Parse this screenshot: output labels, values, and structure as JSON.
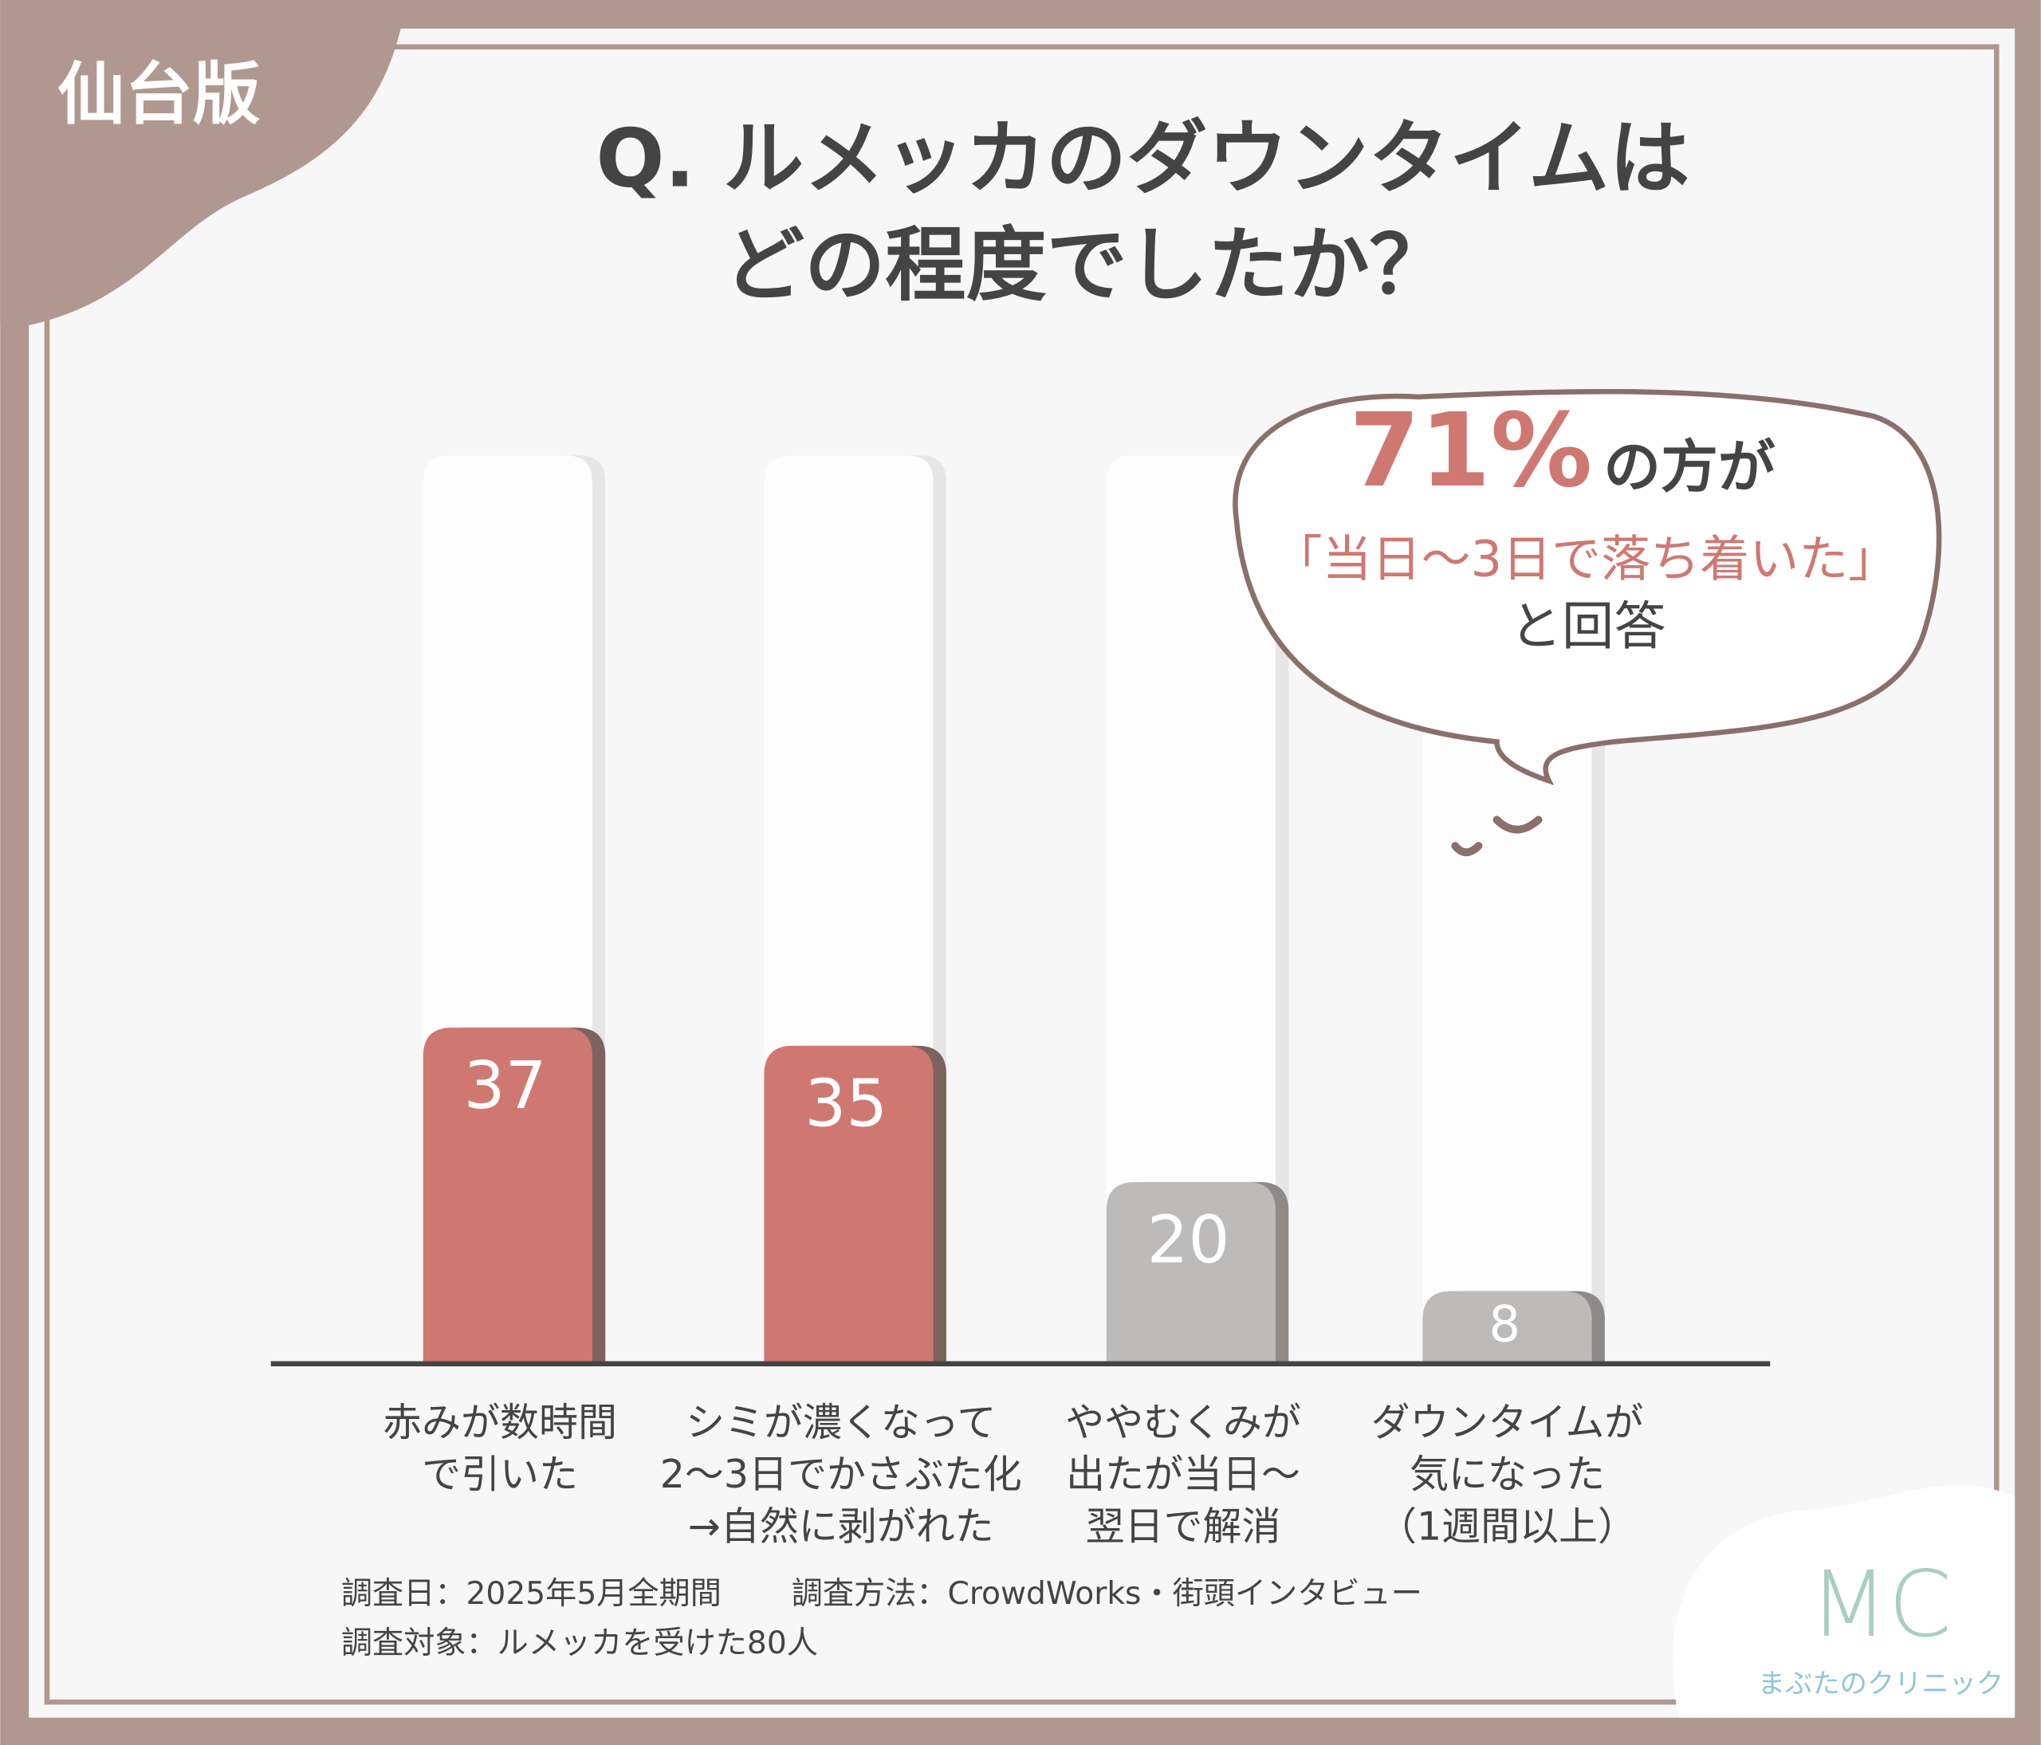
{
  "badge": "仙台版",
  "chart_data": {
    "type": "bar",
    "title": [
      "Q. ルメッカのダウンタイムは",
      "どの程度でしたか？"
    ],
    "categories": [
      [
        "赤みが数時間",
        "で引いた"
      ],
      [
        "シミが濃くなって",
        "2〜3日でかさぶた化",
        "→自然に剥がれた"
      ],
      [
        "ややむくみが",
        "出たが当日〜",
        "翌日で解消"
      ],
      [
        "ダウンタイムが",
        "気になった",
        "（1週間以上）"
      ]
    ],
    "values": [
      37,
      35,
      20,
      8
    ],
    "colors": [
      "#cf7872",
      "#cf7872",
      "#bdbbba",
      "#bdbbba"
    ],
    "ylim": [
      0,
      100
    ],
    "annotation": {
      "highlight": "71%",
      "after": "の方が",
      "quote": "「当日〜3日で落ち着いた」",
      "tail": "と回答"
    }
  },
  "notes": [
    "調査日：2025年5月全期間",
    "調査方法：CrowdWorks・街頭インタビュー",
    "調査対象：ルメッカを受けた80人"
  ],
  "logo": {
    "mark": "MC",
    "name": "まぶたのクリニック"
  }
}
